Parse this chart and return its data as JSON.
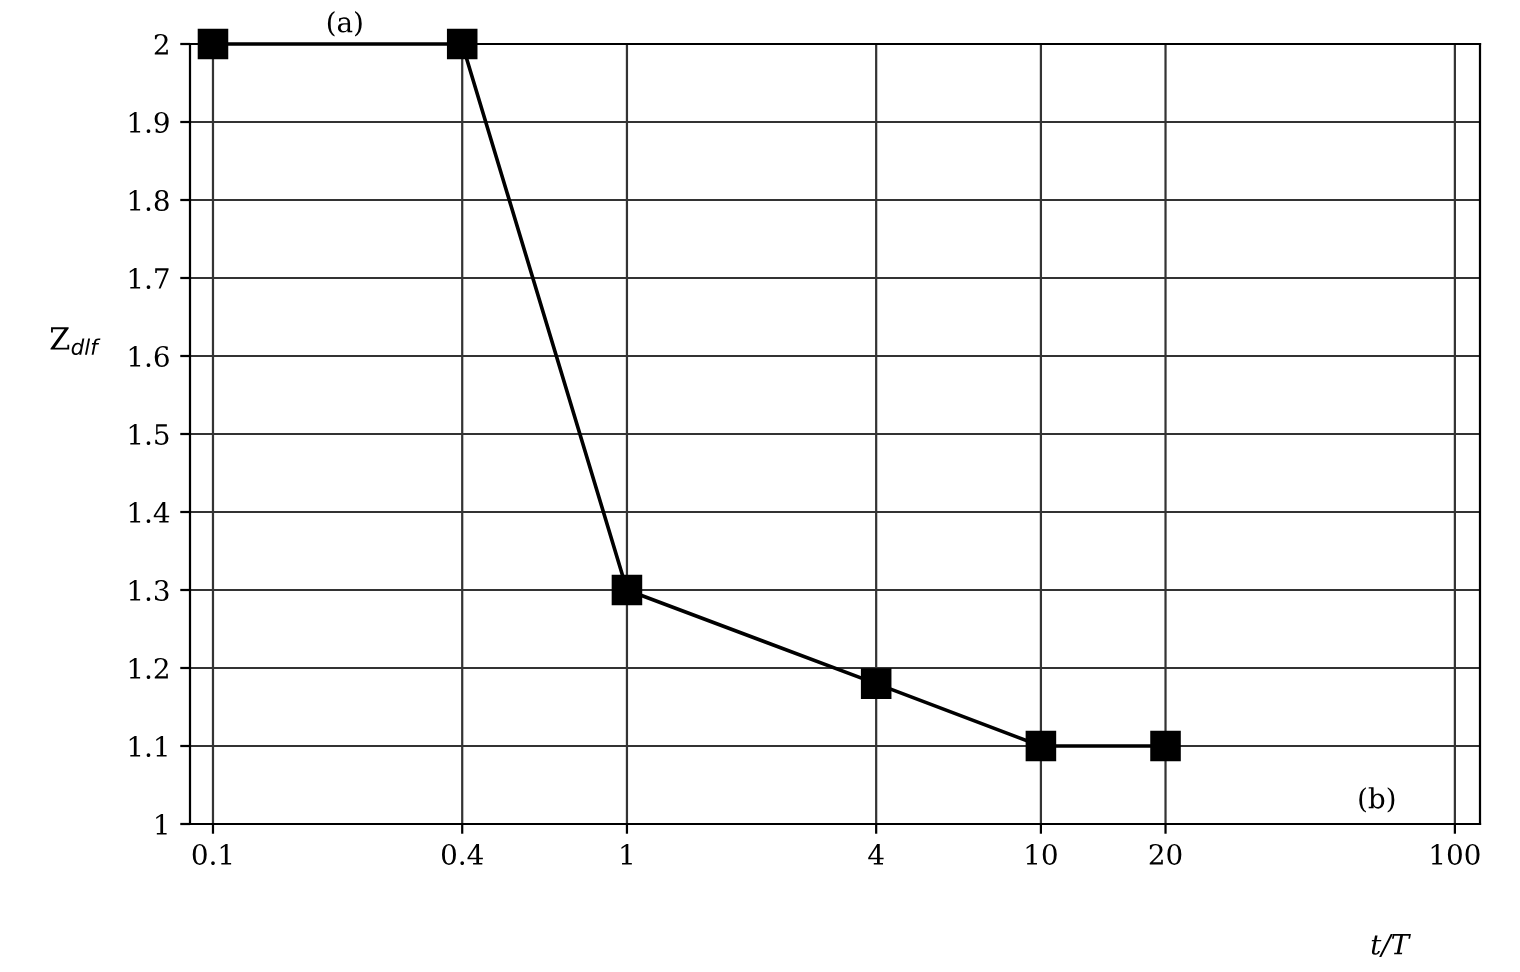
{
  "chart_data": {
    "type": "line",
    "x": [
      0.1,
      0.4,
      1,
      4,
      10,
      20
    ],
    "series": [
      {
        "color": "#000000",
        "values": [
          2,
          2,
          1.3,
          1.18,
          1.1,
          1.1
        ]
      }
    ],
    "xlabel": "t/T",
    "ylabel": "Z$_{dlf}$",
    "log": "x",
    "xlim": [
      0.088,
      115
    ],
    "xticks": [
      0.1,
      0.4,
      1,
      4,
      10,
      20,
      100
    ],
    "ylim": [
      1,
      2
    ],
    "yticks": [
      1,
      1.1,
      1.2,
      1.3,
      1.4,
      1.5,
      1.6,
      1.7,
      1.8,
      1.9,
      2
    ],
    "grid": true,
    "marker": "square",
    "line_style": "solid",
    "annotations": [
      "(a)",
      "(b)"
    ]
  }
}
